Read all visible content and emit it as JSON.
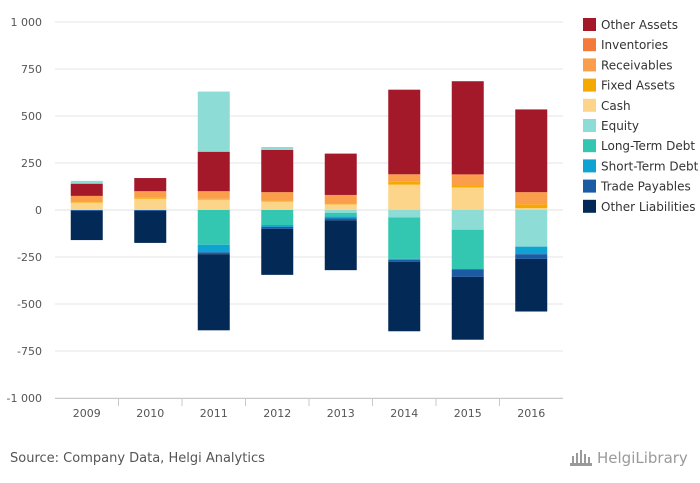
{
  "chart_data": {
    "type": "bar",
    "stacked": true,
    "categories": [
      "2009",
      "2010",
      "2011",
      "2012",
      "2013",
      "2014",
      "2015",
      "2016"
    ],
    "ylim": [
      -1000,
      1000
    ],
    "yticks": [
      1000,
      750,
      500,
      250,
      0,
      -250,
      -500,
      -750,
      -1000
    ],
    "ytick_labels": [
      "1 000",
      "750",
      "500",
      "250",
      "0",
      "-250",
      "-500",
      "-750",
      "-1 000"
    ],
    "grid": true,
    "legend_position": "right",
    "positive_series": [
      {
        "name": "Cash",
        "color": "#fdd58a",
        "values": [
          40,
          60,
          55,
          45,
          30,
          135,
          120,
          10
        ]
      },
      {
        "name": "Fixed Assets",
        "color": "#f5a800",
        "values": [
          5,
          5,
          5,
          5,
          5,
          15,
          10,
          20
        ]
      },
      {
        "name": "Receivables",
        "color": "#fa9e4b",
        "values": [
          30,
          35,
          40,
          45,
          45,
          40,
          55,
          65
        ]
      },
      {
        "name": "Inventories",
        "color": "#f47a3b",
        "values": [
          0,
          0,
          0,
          0,
          0,
          0,
          5,
          0
        ]
      },
      {
        "name": "Other Assets",
        "color": "#a4192a",
        "values": [
          65,
          70,
          210,
          225,
          220,
          450,
          495,
          440
        ]
      },
      {
        "name": "Equity",
        "color": "#8ddcd5",
        "values": [
          15,
          0,
          320,
          15,
          0,
          0,
          0,
          0
        ]
      }
    ],
    "negative_series": [
      {
        "name": "Equity",
        "color": "#8ddcd5",
        "values": [
          0,
          0,
          0,
          0,
          -15,
          -40,
          -105,
          -195
        ]
      },
      {
        "name": "Long-Term Debt",
        "color": "#33c6b1",
        "values": [
          0,
          0,
          -185,
          -80,
          -20,
          -220,
          -210,
          0
        ]
      },
      {
        "name": "Short-Term Debt",
        "color": "#0fa3d3",
        "values": [
          0,
          0,
          -40,
          -10,
          -10,
          -5,
          0,
          -40
        ]
      },
      {
        "name": "Trade Payables",
        "color": "#1b5ba6",
        "values": [
          -5,
          -5,
          -10,
          -10,
          -10,
          -10,
          -40,
          -25
        ]
      },
      {
        "name": "Other Liabilities",
        "color": "#032a56",
        "values": [
          -155,
          -170,
          -405,
          -245,
          -265,
          -370,
          -335,
          -280
        ]
      }
    ],
    "legend": [
      {
        "name": "Other Assets",
        "color": "#a4192a"
      },
      {
        "name": "Inventories",
        "color": "#f47a3b"
      },
      {
        "name": "Receivables",
        "color": "#fa9e4b"
      },
      {
        "name": "Fixed Assets",
        "color": "#f5a800"
      },
      {
        "name": "Cash",
        "color": "#fdd58a"
      },
      {
        "name": "Equity",
        "color": "#8ddcd5"
      },
      {
        "name": "Long-Term Debt",
        "color": "#33c6b1"
      },
      {
        "name": "Short-Term Debt",
        "color": "#0fa3d3"
      },
      {
        "name": "Trade Payables",
        "color": "#1b5ba6"
      },
      {
        "name": "Other Liabilities",
        "color": "#032a56"
      }
    ]
  },
  "footer": {
    "source": "Source: Company Data, Helgi Analytics",
    "logo_text": "HelgiLibrary"
  }
}
